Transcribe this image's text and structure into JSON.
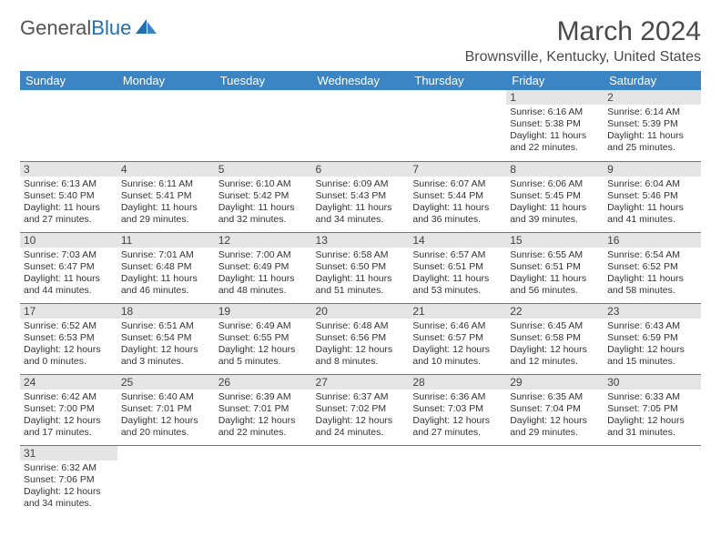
{
  "logo": {
    "general": "General",
    "blue": "Blue"
  },
  "title": "March 2024",
  "location": "Brownsville, Kentucky, United States",
  "colors": {
    "header_bg": "#3b85c5",
    "header_text": "#ffffff",
    "daynum_bg": "#e5e5e5",
    "border": "#3b85c5",
    "logo_gray": "#545454",
    "logo_blue": "#1f6fb2"
  },
  "weekdays": [
    "Sunday",
    "Monday",
    "Tuesday",
    "Wednesday",
    "Thursday",
    "Friday",
    "Saturday"
  ],
  "grid": [
    [
      null,
      null,
      null,
      null,
      null,
      {
        "n": "1",
        "sunrise": "6:16 AM",
        "sunset": "5:38 PM",
        "dl": "11 hours and 22 minutes."
      },
      {
        "n": "2",
        "sunrise": "6:14 AM",
        "sunset": "5:39 PM",
        "dl": "11 hours and 25 minutes."
      }
    ],
    [
      {
        "n": "3",
        "sunrise": "6:13 AM",
        "sunset": "5:40 PM",
        "dl": "11 hours and 27 minutes."
      },
      {
        "n": "4",
        "sunrise": "6:11 AM",
        "sunset": "5:41 PM",
        "dl": "11 hours and 29 minutes."
      },
      {
        "n": "5",
        "sunrise": "6:10 AM",
        "sunset": "5:42 PM",
        "dl": "11 hours and 32 minutes."
      },
      {
        "n": "6",
        "sunrise": "6:09 AM",
        "sunset": "5:43 PM",
        "dl": "11 hours and 34 minutes."
      },
      {
        "n": "7",
        "sunrise": "6:07 AM",
        "sunset": "5:44 PM",
        "dl": "11 hours and 36 minutes."
      },
      {
        "n": "8",
        "sunrise": "6:06 AM",
        "sunset": "5:45 PM",
        "dl": "11 hours and 39 minutes."
      },
      {
        "n": "9",
        "sunrise": "6:04 AM",
        "sunset": "5:46 PM",
        "dl": "11 hours and 41 minutes."
      }
    ],
    [
      {
        "n": "10",
        "sunrise": "7:03 AM",
        "sunset": "6:47 PM",
        "dl": "11 hours and 44 minutes."
      },
      {
        "n": "11",
        "sunrise": "7:01 AM",
        "sunset": "6:48 PM",
        "dl": "11 hours and 46 minutes."
      },
      {
        "n": "12",
        "sunrise": "7:00 AM",
        "sunset": "6:49 PM",
        "dl": "11 hours and 48 minutes."
      },
      {
        "n": "13",
        "sunrise": "6:58 AM",
        "sunset": "6:50 PM",
        "dl": "11 hours and 51 minutes."
      },
      {
        "n": "14",
        "sunrise": "6:57 AM",
        "sunset": "6:51 PM",
        "dl": "11 hours and 53 minutes."
      },
      {
        "n": "15",
        "sunrise": "6:55 AM",
        "sunset": "6:51 PM",
        "dl": "11 hours and 56 minutes."
      },
      {
        "n": "16",
        "sunrise": "6:54 AM",
        "sunset": "6:52 PM",
        "dl": "11 hours and 58 minutes."
      }
    ],
    [
      {
        "n": "17",
        "sunrise": "6:52 AM",
        "sunset": "6:53 PM",
        "dl": "12 hours and 0 minutes."
      },
      {
        "n": "18",
        "sunrise": "6:51 AM",
        "sunset": "6:54 PM",
        "dl": "12 hours and 3 minutes."
      },
      {
        "n": "19",
        "sunrise": "6:49 AM",
        "sunset": "6:55 PM",
        "dl": "12 hours and 5 minutes."
      },
      {
        "n": "20",
        "sunrise": "6:48 AM",
        "sunset": "6:56 PM",
        "dl": "12 hours and 8 minutes."
      },
      {
        "n": "21",
        "sunrise": "6:46 AM",
        "sunset": "6:57 PM",
        "dl": "12 hours and 10 minutes."
      },
      {
        "n": "22",
        "sunrise": "6:45 AM",
        "sunset": "6:58 PM",
        "dl": "12 hours and 12 minutes."
      },
      {
        "n": "23",
        "sunrise": "6:43 AM",
        "sunset": "6:59 PM",
        "dl": "12 hours and 15 minutes."
      }
    ],
    [
      {
        "n": "24",
        "sunrise": "6:42 AM",
        "sunset": "7:00 PM",
        "dl": "12 hours and 17 minutes."
      },
      {
        "n": "25",
        "sunrise": "6:40 AM",
        "sunset": "7:01 PM",
        "dl": "12 hours and 20 minutes."
      },
      {
        "n": "26",
        "sunrise": "6:39 AM",
        "sunset": "7:01 PM",
        "dl": "12 hours and 22 minutes."
      },
      {
        "n": "27",
        "sunrise": "6:37 AM",
        "sunset": "7:02 PM",
        "dl": "12 hours and 24 minutes."
      },
      {
        "n": "28",
        "sunrise": "6:36 AM",
        "sunset": "7:03 PM",
        "dl": "12 hours and 27 minutes."
      },
      {
        "n": "29",
        "sunrise": "6:35 AM",
        "sunset": "7:04 PM",
        "dl": "12 hours and 29 minutes."
      },
      {
        "n": "30",
        "sunrise": "6:33 AM",
        "sunset": "7:05 PM",
        "dl": "12 hours and 31 minutes."
      }
    ],
    [
      {
        "n": "31",
        "sunrise": "6:32 AM",
        "sunset": "7:06 PM",
        "dl": "12 hours and 34 minutes."
      },
      null,
      null,
      null,
      null,
      null,
      null
    ]
  ]
}
